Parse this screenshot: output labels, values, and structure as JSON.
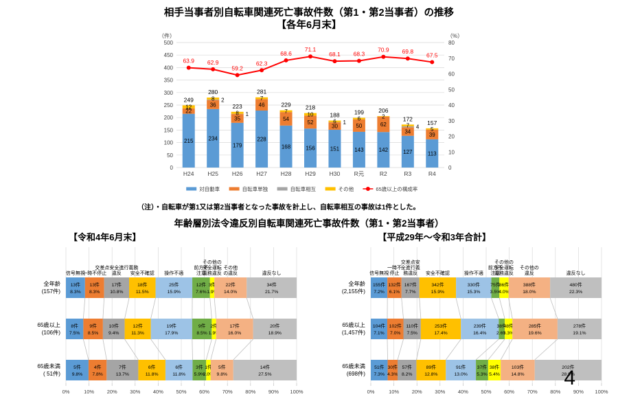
{
  "page": {
    "number": "4"
  },
  "chart_data": [
    {
      "type": "bar",
      "subtype": "stacked-column-with-line",
      "title": "相手当事者別自転車関連死亡事故件数（第1・第2当事者）の推移",
      "subtitle": "【各年6月末】",
      "note": "（注）・自転車が第1又は第2当事者となった事故を計上し、自転車相互の事故は1件とした。",
      "categories": [
        "H24",
        "H25",
        "H26",
        "H27",
        "H28",
        "H29",
        "H30",
        "R元",
        "R2",
        "R3",
        "R4"
      ],
      "series": [
        {
          "name": "対自動車",
          "color": "#5B9BD5",
          "values": [
            215,
            234,
            179,
            228,
            168,
            156,
            151,
            143,
            142,
            127,
            113
          ]
        },
        {
          "name": "自転車単独",
          "color": "#ED7D31",
          "values": [
            22,
            36,
            35,
            46,
            54,
            52,
            30,
            50,
            62,
            34,
            39
          ]
        },
        {
          "name": "自転車相互",
          "color": "#A5A5A5",
          "values": [
            0,
            2,
            1,
            0,
            0,
            0,
            1,
            0,
            0,
            4,
            0
          ]
        },
        {
          "name": "その他",
          "color": "#FFC000",
          "values": [
            12,
            8,
            8,
            7,
            7,
            10,
            6,
            6,
            2,
            7,
            5
          ]
        }
      ],
      "totals": [
        "249",
        "280",
        "223",
        "281",
        "229",
        "218",
        "188",
        "199",
        "206",
        "172",
        "157"
      ],
      "line_series": {
        "name": "65歳以上の構成率",
        "color": "#FF0000",
        "values": [
          63.9,
          62.9,
          59.2,
          62.3,
          68.6,
          71.1,
          68.1,
          68.3,
          70.9,
          69.8,
          67.5
        ]
      },
      "left_axis": {
        "label": "（件）",
        "min": 0,
        "max": 500,
        "step": 50
      },
      "right_axis": {
        "label": "（%）",
        "min": 0,
        "max": 80,
        "step": 10
      },
      "grid": true,
      "legend_position": "bottom"
    },
    {
      "type": "bar",
      "subtype": "horizontal-stacked-100pct",
      "title": "年齢層別法令違反別自転車関連死亡事故件数（第1・第2当事者）",
      "subtitle": "【令和4年6月末】",
      "categories": [
        {
          "name": "信号無視",
          "lines": [
            "信号無視"
          ]
        },
        {
          "name": "一時不停止",
          "lines": [
            "一時不停止"
          ]
        },
        {
          "name": "交差点安全進行義務違反",
          "lines": [
            "交差点安全進行義務",
            "違反"
          ]
        },
        {
          "name": "安全不確認",
          "lines": [
            "安全不確認"
          ]
        },
        {
          "name": "操作不適",
          "lines": [
            "操作不適"
          ]
        },
        {
          "name": "前方不注意",
          "lines": [
            "前方不",
            "注意"
          ]
        },
        {
          "name": "その他の安全運転義務違反",
          "lines": [
            "その他の",
            "安全運転",
            "義務違反"
          ]
        },
        {
          "name": "その他の違反",
          "lines": [
            "その他",
            "の違反"
          ]
        },
        {
          "name": "違反なし",
          "lines": [
            "違反なし"
          ]
        }
      ],
      "colors": [
        "#5B9BD5",
        "#ED7D31",
        "#A5A5A5",
        "#FFC000",
        "#9DC3E6",
        "#70AD47",
        "#FFFF00",
        "#F4B183",
        "#BFBFBF"
      ],
      "rows": [
        {
          "label": "全年齢",
          "sublabel": "(157件)",
          "values": [
            13,
            13,
            17,
            18,
            25,
            12,
            3,
            22,
            34
          ],
          "pcts": [
            "8.3",
            "8.3",
            "10.8",
            "11.5",
            "15.9",
            "7.6",
            "1.9",
            "14.0",
            "21.7"
          ]
        },
        {
          "label": "65歳以上",
          "sublabel": "(106件)",
          "values": [
            8,
            9,
            10,
            12,
            19,
            9,
            2,
            17,
            20
          ],
          "pcts": [
            "7.5",
            "8.5",
            "9.4",
            "11.3",
            "17.9",
            "8.5",
            "1.9",
            "16.0",
            "18.9"
          ]
        },
        {
          "label": "65歳未満",
          "sublabel": "( 51件)",
          "values": [
            5,
            4,
            7,
            6,
            6,
            3,
            1,
            5,
            14
          ],
          "pcts": [
            "9.8",
            "7.8",
            "13.7",
            "11.8",
            "11.8",
            "5.9",
            "2.0",
            "9.8",
            "27.5"
          ]
        }
      ],
      "x_ticks": [
        "0%",
        "10%",
        "20%",
        "30%",
        "40%",
        "50%",
        "60%",
        "70%",
        "80%",
        "90%",
        "100%"
      ]
    },
    {
      "type": "bar",
      "subtype": "horizontal-stacked-100pct",
      "title": "年齢層別法令違反別自転車関連死亡事故件数（第1・第2当事者）",
      "subtitle": "【平成29年～令和3年合計】",
      "categories": [
        {
          "name": "信号無視",
          "lines": [
            "信号無視"
          ]
        },
        {
          "name": "一時不停止",
          "lines": [
            "一時不",
            "停止"
          ]
        },
        {
          "name": "交差点安全進行義務違反",
          "lines": [
            "交差点安",
            "全進行義",
            "務違反"
          ]
        },
        {
          "name": "安全不確認",
          "lines": [
            "安全不確認"
          ]
        },
        {
          "name": "操作不適",
          "lines": [
            "操作不適"
          ]
        },
        {
          "name": "前方不注意",
          "lines": [
            "前方不",
            "注意"
          ]
        },
        {
          "name": "その他の安全運転義務違反",
          "lines": [
            "その他の",
            "安全運転",
            "義務違反"
          ]
        },
        {
          "name": "その他の違反",
          "lines": [
            "その他の",
            "違反"
          ]
        },
        {
          "name": "違反なし",
          "lines": [
            "違反なし"
          ]
        }
      ],
      "colors": [
        "#5B9BD5",
        "#ED7D31",
        "#A5A5A5",
        "#FFC000",
        "#9DC3E6",
        "#70AD47",
        "#FFFF00",
        "#F4B183",
        "#BFBFBF"
      ],
      "rows": [
        {
          "label": "全年齢",
          "sublabel": "(2,155件)",
          "values": [
            155,
            132,
            167,
            342,
            330,
            75,
            86,
            388,
            480
          ],
          "pcts": [
            "7.2",
            "6.1",
            "7.7",
            "15.9",
            "15.3",
            "3.5",
            "4.0",
            "18.0",
            "22.3"
          ]
        },
        {
          "label": "65歳以上",
          "sublabel": "(1,457件)",
          "values": [
            104,
            102,
            110,
            253,
            239,
            38,
            48,
            285,
            278
          ],
          "pcts": [
            "7.1",
            "7.0",
            "7.5",
            "17.4",
            "16.4",
            "2.6",
            "3.3",
            "19.6",
            "19.1"
          ]
        },
        {
          "label": "65歳未満",
          "sublabel": "(698件)",
          "values": [
            51,
            30,
            57,
            89,
            91,
            37,
            38,
            103,
            202
          ],
          "pcts": [
            "7.3",
            "4.3",
            "8.2",
            "12.8",
            "13.0",
            "5.3",
            "5.4",
            "14.8",
            "28.9"
          ]
        }
      ],
      "x_ticks": [
        "0%",
        "10%",
        "20%",
        "30%",
        "40%",
        "50%",
        "60%",
        "70%",
        "80%",
        "90%",
        "100%"
      ]
    }
  ]
}
